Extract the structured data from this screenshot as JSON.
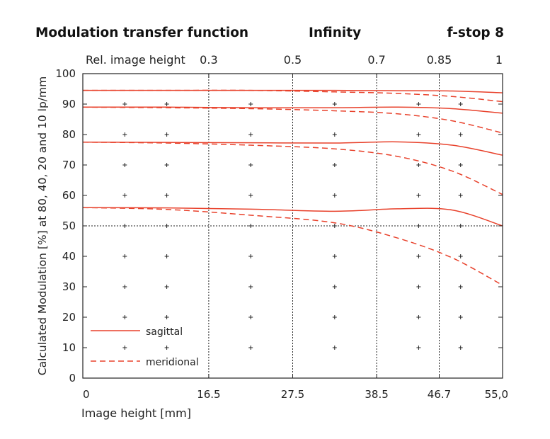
{
  "header": {
    "title": "Modulation transfer function",
    "focus": "Infinity",
    "aperture": "f-stop 8"
  },
  "chart_data": {
    "type": "line",
    "title": "Modulation transfer function",
    "xlabel": "Image height [mm]",
    "ylabel": "Calculated Modulation [%] at 80, 40, 20 and 10 lp/mm",
    "x_ticks": [
      0,
      16.5,
      27.5,
      38.5,
      46.7,
      55.0
    ],
    "x_tick_labels": [
      "0",
      "16.5",
      "27.5",
      "38.5",
      "46.7",
      "55,0"
    ],
    "xlim": [
      0,
      55
    ],
    "ylim": [
      0,
      100
    ],
    "y_ticks": [
      0,
      10,
      20,
      30,
      40,
      50,
      60,
      70,
      80,
      90,
      100
    ],
    "top_axis_label": "Rel. image height",
    "top_ticks": [
      "0.3",
      "0.5",
      "0.7",
      "0.85",
      "1"
    ],
    "top_tick_positions": [
      16.5,
      27.5,
      38.5,
      46.7,
      55.0
    ],
    "reference_line_y": 50,
    "grid": "vertical dotted lines at 16.5, 27.5, 38.5, 46.7; plus markers every 5.5 mm × 10 %",
    "legend": {
      "position": "bottom-left",
      "sagittal": "sagittal",
      "meridional": "meridional"
    },
    "color": "#e8412b",
    "series": [
      {
        "name": "sagittal",
        "lp_mm": 10,
        "x": [
          0,
          11,
          22,
          33,
          41.25,
          48.4,
          55
        ],
        "values": [
          94.5,
          94.5,
          94.5,
          94.5,
          94.4,
          94.3,
          93.7
        ]
      },
      {
        "name": "meridional",
        "lp_mm": 10,
        "x": [
          0,
          11,
          22,
          33,
          41.25,
          48.4,
          55
        ],
        "values": [
          94.5,
          94.5,
          94.5,
          94.0,
          93.5,
          92.5,
          90.8
        ]
      },
      {
        "name": "sagittal",
        "lp_mm": 20,
        "x": [
          0,
          11,
          22,
          33,
          41.25,
          48.4,
          55
        ],
        "values": [
          89,
          89,
          88.8,
          88.8,
          89,
          88.5,
          87
        ]
      },
      {
        "name": "meridional",
        "lp_mm": 20,
        "x": [
          0,
          11,
          22,
          33,
          41.25,
          48.4,
          55
        ],
        "values": [
          89,
          88.8,
          88.5,
          87.8,
          86.8,
          84.5,
          80.5
        ]
      },
      {
        "name": "sagittal",
        "lp_mm": 40,
        "x": [
          0,
          11,
          22,
          33,
          41.25,
          48.4,
          55
        ],
        "values": [
          77.5,
          77.4,
          77.3,
          77.2,
          77.6,
          76.5,
          73.2
        ]
      },
      {
        "name": "meridional",
        "lp_mm": 40,
        "x": [
          0,
          11,
          22,
          33,
          41.25,
          48.4,
          55
        ],
        "values": [
          77.5,
          77.2,
          76.5,
          75.3,
          72.8,
          68.0,
          60.3
        ]
      },
      {
        "name": "sagittal",
        "lp_mm": 80,
        "x": [
          0,
          11,
          22,
          33,
          41.25,
          48.4,
          55
        ],
        "values": [
          56,
          55.9,
          55.5,
          54.8,
          55.6,
          55.2,
          50
        ]
      },
      {
        "name": "meridional",
        "lp_mm": 80,
        "x": [
          0,
          11,
          22,
          33,
          41.25,
          48.4,
          55
        ],
        "values": [
          56,
          55.4,
          53.5,
          51.0,
          46.0,
          39.5,
          30.5
        ]
      }
    ]
  }
}
